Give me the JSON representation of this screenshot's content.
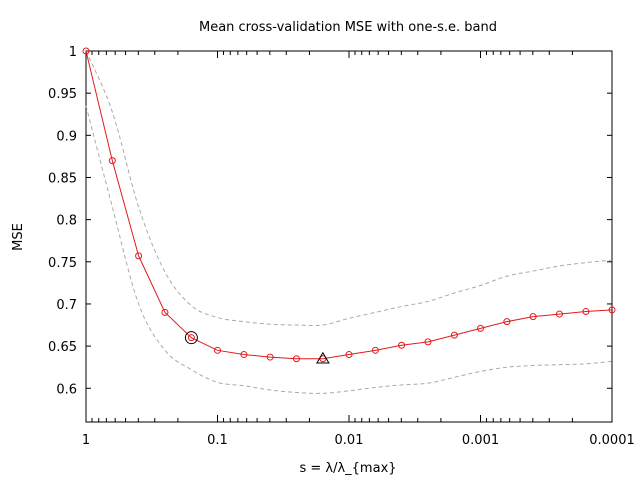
{
  "chart_data": {
    "type": "line",
    "title": "Mean cross-validation MSE with one-s.e. band",
    "xlabel": "s = λ/λ_{max}",
    "ylabel": "MSE",
    "x_scale": "log",
    "x_reversed": true,
    "xlim": [
      1,
      0.0001
    ],
    "ylim": [
      0.56,
      1.0
    ],
    "x_ticks": [
      {
        "value": 1,
        "label": "1"
      },
      {
        "value": 0.1,
        "label": "0.1"
      },
      {
        "value": 0.01,
        "label": "0.01"
      },
      {
        "value": 0.001,
        "label": "0.001"
      },
      {
        "value": 0.0001,
        "label": "0.0001"
      }
    ],
    "y_ticks": [
      {
        "value": 1.0,
        "label": "1"
      },
      {
        "value": 0.95,
        "label": "0.95"
      },
      {
        "value": 0.9,
        "label": "0.9"
      },
      {
        "value": 0.85,
        "label": "0.85"
      },
      {
        "value": 0.8,
        "label": "0.8"
      },
      {
        "value": 0.75,
        "label": "0.75"
      },
      {
        "value": 0.7,
        "label": "0.7"
      },
      {
        "value": 0.65,
        "label": "0.65"
      },
      {
        "value": 0.6,
        "label": "0.6"
      }
    ],
    "grid": false,
    "colors": {
      "mean": "#e41a1c",
      "band": "#aaaaaa",
      "marker": "#000000"
    },
    "x": [
      1.0,
      0.631,
      0.398,
      0.251,
      0.158,
      0.1,
      0.063,
      0.0398,
      0.0251,
      0.0158,
      0.01,
      0.0063,
      0.00398,
      0.00251,
      0.00158,
      0.001,
      0.00063,
      0.000398,
      0.000251,
      0.000158,
      0.0001
    ],
    "series": [
      {
        "values": [
          1.0,
          0.87,
          0.757,
          0.69,
          0.66,
          0.645,
          0.64,
          0.637,
          0.635,
          0.635,
          0.64,
          0.645,
          0.651,
          0.655,
          0.663,
          0.671,
          0.679,
          0.685,
          0.688,
          0.691,
          0.693
        ],
        "style": "line-markers"
      },
      {
        "values": [
          0.935,
          0.815,
          0.7,
          0.645,
          0.622,
          0.607,
          0.603,
          0.598,
          0.595,
          0.594,
          0.597,
          0.601,
          0.604,
          0.606,
          0.613,
          0.62,
          0.625,
          0.627,
          0.628,
          0.629,
          0.632
        ],
        "style": "dashed"
      },
      {
        "values": [
          1.0,
          0.928,
          0.815,
          0.738,
          0.698,
          0.684,
          0.679,
          0.676,
          0.675,
          0.675,
          0.683,
          0.69,
          0.697,
          0.703,
          0.713,
          0.722,
          0.733,
          0.739,
          0.745,
          0.749,
          0.752
        ],
        "style": "dashed"
      }
    ],
    "highlights": [
      {
        "shape": "circle",
        "x": 0.158,
        "y": 0.66
      },
      {
        "shape": "triangle",
        "x": 0.0158,
        "y": 0.635
      }
    ]
  }
}
